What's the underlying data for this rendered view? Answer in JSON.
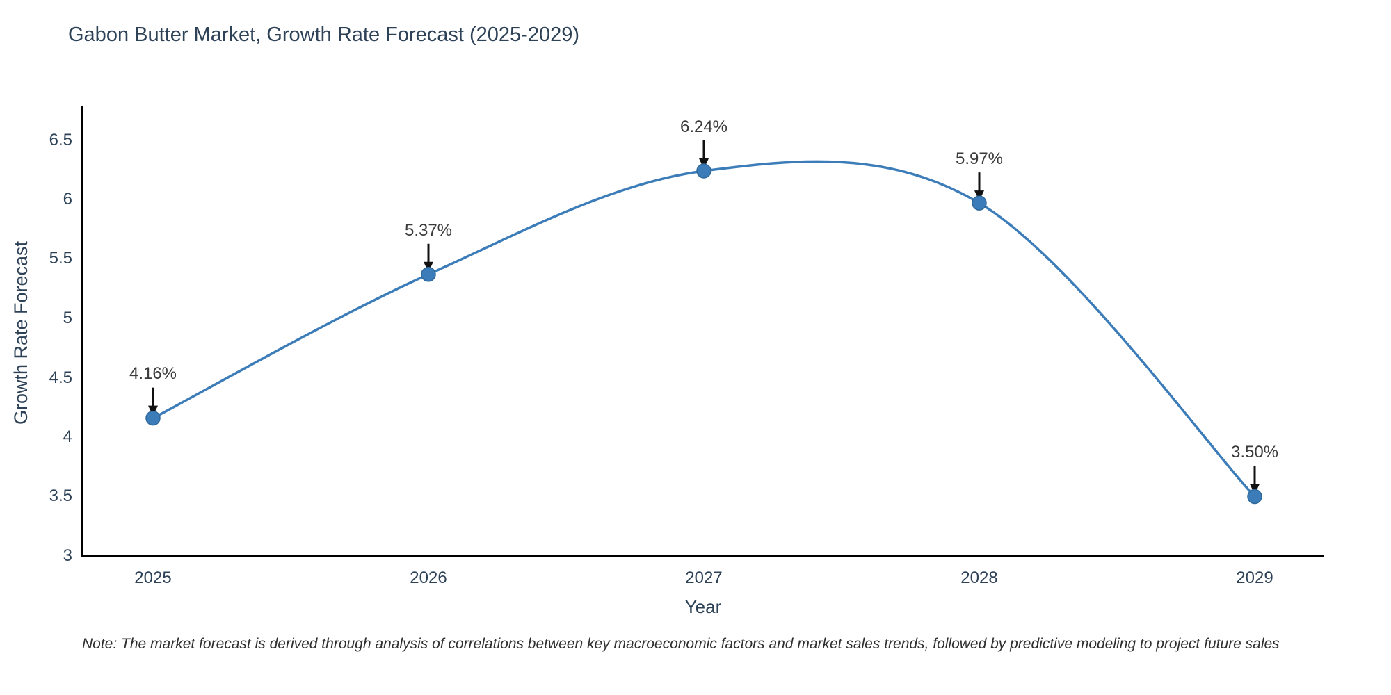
{
  "page": {
    "title": "Gabon Butter Market, Growth Rate Forecast (2025-2029)",
    "note": "Note: The market forecast is derived through analysis of correlations between key macroeconomic factors and market sales trends, followed by predictive modeling to project future sales"
  },
  "chart_data": {
    "type": "line",
    "curve": "spline",
    "grid": false,
    "legend_position": "none",
    "title": "Gabon Butter Market, Growth Rate Forecast (2025-2029)",
    "xlabel": "Year",
    "ylabel": "Growth Rate Forecast",
    "x": [
      2025,
      2026,
      2027,
      2028,
      2029
    ],
    "xtick_labels": [
      "2025",
      "2026",
      "2027",
      "2028",
      "2029"
    ],
    "values": [
      4.16,
      5.37,
      6.24,
      5.97,
      3.5
    ],
    "point_labels": [
      "4.16%",
      "5.37%",
      "6.24%",
      "5.97%",
      "3.50%"
    ],
    "ylim": [
      3,
      6.5
    ],
    "yticks": [
      3,
      3.5,
      4,
      4.5,
      5,
      5.5,
      6,
      6.5
    ],
    "ytick_labels": [
      "3",
      "3.5",
      "4",
      "4.5",
      "5",
      "5.5",
      "6",
      "6.5"
    ],
    "line_color": "#3c7db9",
    "marker_color": "#3c7db9",
    "marker_edge_color": "#2f699c",
    "annotation_arrow_color": "#111111",
    "axis_color": "#000000",
    "text_color": "#2e4257"
  }
}
